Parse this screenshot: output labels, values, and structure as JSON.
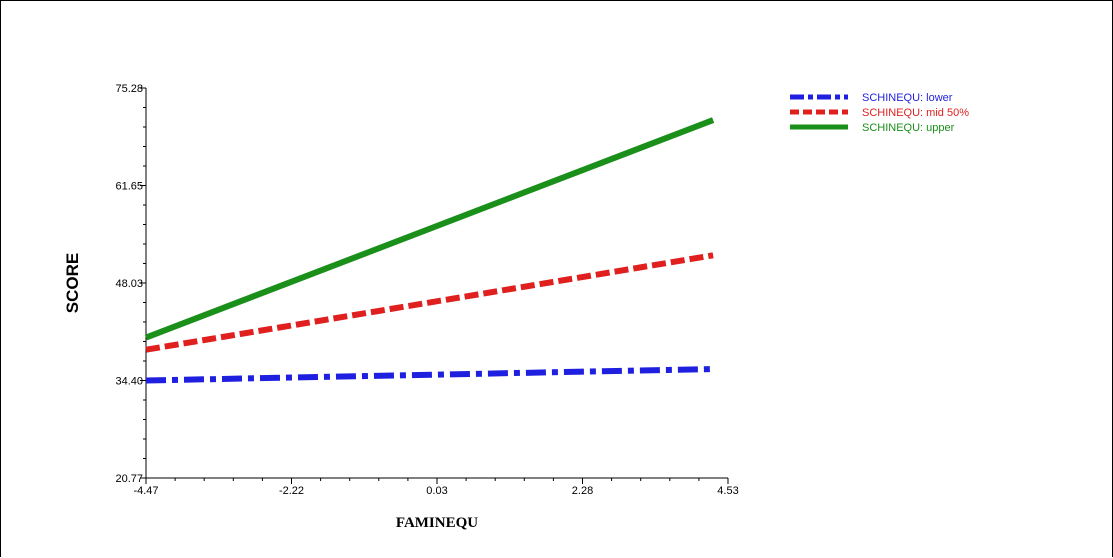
{
  "chart_data": {
    "type": "line",
    "xlabel": "FAMINEQU",
    "ylabel": "SCORE",
    "xlim": [
      -4.47,
      4.53
    ],
    "ylim": [
      20.77,
      75.28
    ],
    "x_ticks": [
      "-4.47",
      "-2.22",
      "0.03",
      "2.28",
      "4.53"
    ],
    "x_tick_values": [
      -4.47,
      -2.22,
      0.03,
      2.28,
      4.53
    ],
    "y_ticks": [
      "20.77",
      "34.40",
      "48.03",
      "61.65",
      "75.28"
    ],
    "y_tick_values": [
      20.77,
      34.4,
      48.03,
      61.65,
      75.28
    ],
    "legend_position": "top-right",
    "series": [
      {
        "name": "SCHINEQU: lower",
        "color": "#1f1fe0",
        "dash": "dash-dot",
        "x": [
          -4.47,
          4.3
        ],
        "y": [
          34.4,
          36.0
        ]
      },
      {
        "name": "SCHINEQU: mid 50%",
        "color": "#e01f1f",
        "dash": "dashed",
        "x": [
          -4.47,
          4.3
        ],
        "y": [
          38.7,
          51.9
        ]
      },
      {
        "name": "SCHINEQU: upper",
        "color": "#1a8f1a",
        "dash": "solid",
        "x": [
          -4.47,
          4.3
        ],
        "y": [
          40.4,
          70.8
        ]
      }
    ]
  }
}
